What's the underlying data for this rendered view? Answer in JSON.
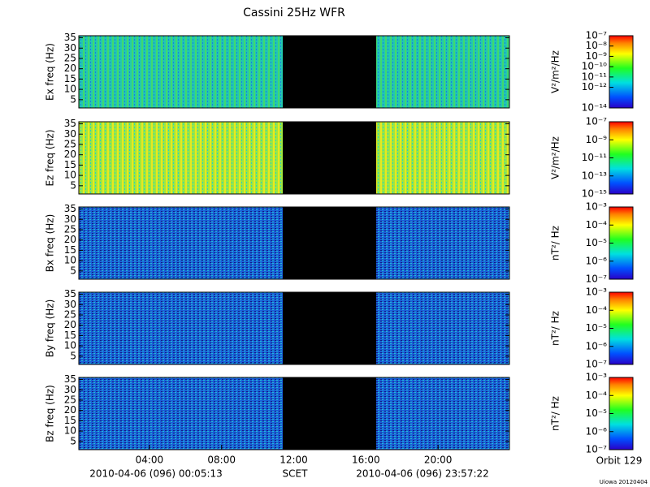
{
  "figure": {
    "title": "Cassini 25Hz WFR",
    "start": "2010-04-06 (096) 00:05:13",
    "scet": "SCET",
    "end": "2010-04-06 (096) 23:57:22",
    "orbit": "Orbit 129",
    "credit": "Uiowa 20120404"
  },
  "chart_data": [
    {
      "type": "spectrogram",
      "ylabel": "Ex freq (Hz)",
      "ylim": [
        1,
        36
      ],
      "yticks": [
        5,
        10,
        15,
        20,
        25,
        30,
        35
      ],
      "xlim": [
        0.087,
        23.956
      ],
      "colorbar": {
        "label": "V²/m²/Hz",
        "log": true,
        "lim": [
          1e-14,
          1e-07
        ],
        "ticks": [
          {
            "value": 1e-07,
            "label": "10⁻⁷"
          },
          {
            "value": 1e-08,
            "label": "10⁻⁸"
          },
          {
            "value": 1e-09,
            "label": "10⁻⁹"
          },
          {
            "value": 1e-10,
            "label": "10⁻¹⁰"
          },
          {
            "value": 1e-11,
            "label": "10⁻¹¹"
          },
          {
            "value": 1e-12,
            "label": "10⁻¹²"
          },
          {
            "value": 1e-14,
            "label": "10⁻¹⁴"
          }
        ]
      }
    },
    {
      "type": "spectrogram",
      "ylabel": "Ez freq (Hz)",
      "ylim": [
        1,
        36
      ],
      "yticks": [
        5,
        10,
        15,
        20,
        25,
        30,
        35
      ],
      "xlim": [
        0.087,
        23.956
      ],
      "colorbar": {
        "label": "V²/m²/Hz",
        "log": true,
        "lim": [
          1e-15,
          1e-07
        ],
        "ticks": [
          {
            "value": 1e-07,
            "label": "10⁻⁷"
          },
          {
            "value": 1e-09,
            "label": "10⁻⁹"
          },
          {
            "value": 1e-11,
            "label": "10⁻¹¹"
          },
          {
            "value": 1e-13,
            "label": "10⁻¹³"
          },
          {
            "value": 1e-15,
            "label": "10⁻¹⁵"
          }
        ]
      }
    },
    {
      "type": "spectrogram",
      "ylabel": "Bx freq (Hz)",
      "ylim": [
        1,
        36
      ],
      "yticks": [
        5,
        10,
        15,
        20,
        25,
        30,
        35
      ],
      "xlim": [
        0.087,
        23.956
      ],
      "colorbar": {
        "label": "nT²/ Hz",
        "log": true,
        "lim": [
          1e-07,
          0.001
        ],
        "ticks": [
          {
            "value": 0.001,
            "label": "10⁻³"
          },
          {
            "value": 0.0001,
            "label": "10⁻⁴"
          },
          {
            "value": 1e-05,
            "label": "10⁻⁵"
          },
          {
            "value": 1e-06,
            "label": "10⁻⁶"
          },
          {
            "value": 1e-07,
            "label": "10⁻⁷"
          }
        ]
      }
    },
    {
      "type": "spectrogram",
      "ylabel": "By freq (Hz)",
      "ylim": [
        1,
        36
      ],
      "yticks": [
        5,
        10,
        15,
        20,
        25,
        30,
        35
      ],
      "xlim": [
        0.087,
        23.956
      ],
      "colorbar": {
        "label": "nT²/ Hz",
        "log": true,
        "lim": [
          1e-07,
          0.001
        ],
        "ticks": [
          {
            "value": 0.001,
            "label": "10⁻³"
          },
          {
            "value": 0.0001,
            "label": "10⁻⁴"
          },
          {
            "value": 1e-05,
            "label": "10⁻⁵"
          },
          {
            "value": 1e-06,
            "label": "10⁻⁶"
          },
          {
            "value": 1e-07,
            "label": "10⁻⁷"
          }
        ]
      }
    },
    {
      "type": "spectrogram",
      "ylabel": "Bz freq (Hz)",
      "ylim": [
        1,
        36
      ],
      "yticks": [
        5,
        10,
        15,
        20,
        25,
        30,
        35
      ],
      "xlim": [
        0.087,
        23.956
      ],
      "xticks": [
        {
          "value": 4,
          "label": "04:00"
        },
        {
          "value": 8,
          "label": "08:00"
        },
        {
          "value": 12,
          "label": "12:00"
        },
        {
          "value": 16,
          "label": "16:00"
        },
        {
          "value": 20,
          "label": "20:00"
        }
      ],
      "colorbar": {
        "label": "nT²/ Hz",
        "log": true,
        "lim": [
          1e-07,
          0.001
        ],
        "ticks": [
          {
            "value": 0.001,
            "label": "10⁻³"
          },
          {
            "value": 0.0001,
            "label": "10⁻⁴"
          },
          {
            "value": 1e-05,
            "label": "10⁻⁵"
          },
          {
            "value": 1e-06,
            "label": "10⁻⁶"
          },
          {
            "value": 1e-07,
            "label": "10⁻⁷"
          }
        ]
      }
    }
  ]
}
